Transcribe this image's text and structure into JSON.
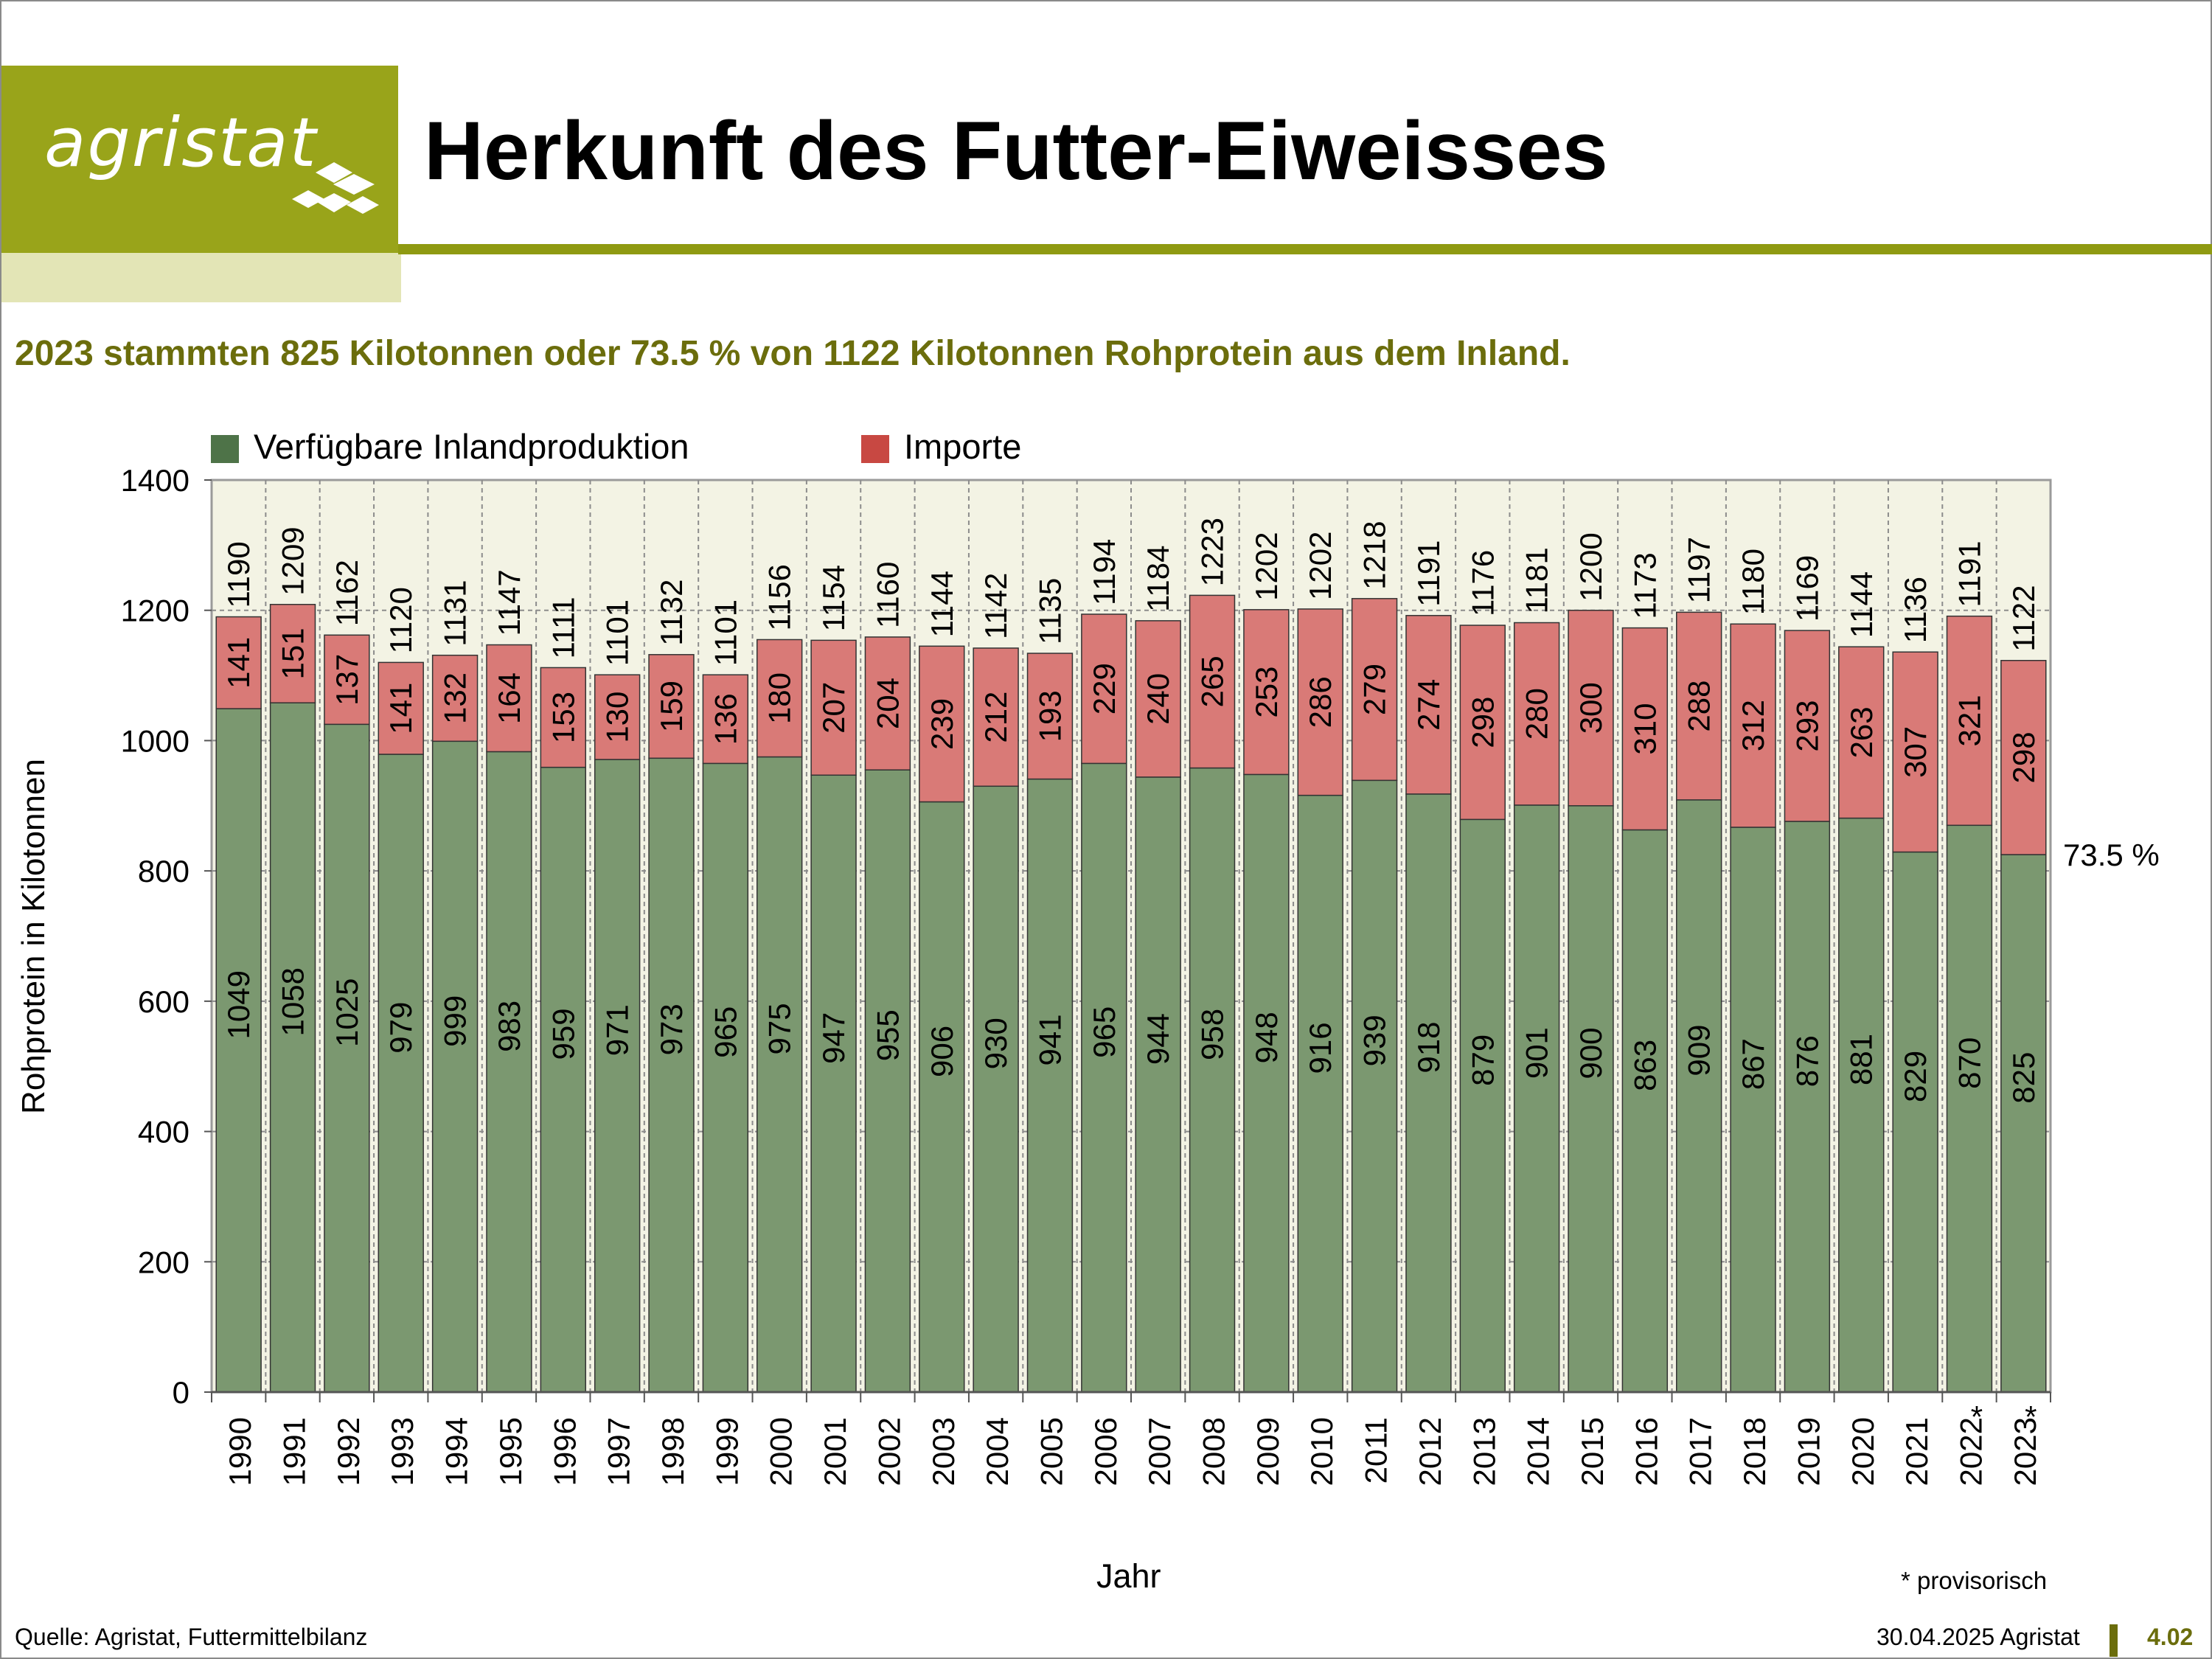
{
  "header": {
    "logo_text": "agristat",
    "title": "Herkunft des Futter-Eiweisses"
  },
  "subtitle": "2023 stammten 825 Kilotonnen oder 73.5 % von 1122 Kilotonnen Rohprotein aus dem Inland.",
  "colors": {
    "brand": "#99a41a",
    "brand_dark": "#6b6d0c",
    "inland": "#7b9870",
    "inland_legend": "#4e7348",
    "imports": "#d97a77",
    "imports_legend": "#c84842",
    "plot_bg": "#f3f3e4"
  },
  "chart_data": {
    "type": "bar",
    "stacked": true,
    "categories": [
      "1990",
      "1991",
      "1992",
      "1993",
      "1994",
      "1995",
      "1996",
      "1997",
      "1998",
      "1999",
      "2000",
      "2001",
      "2002",
      "2003",
      "2004",
      "2005",
      "2006",
      "2007",
      "2008",
      "2009",
      "2010",
      "2011",
      "2012",
      "2013",
      "2014",
      "2015",
      "2016",
      "2017",
      "2018",
      "2019",
      "2020",
      "2021",
      "2022 *",
      "2023 *"
    ],
    "series": [
      {
        "name": "Verfügbare Inlandproduktion",
        "values": [
          1049,
          1058,
          1025,
          979,
          999,
          983,
          959,
          971,
          973,
          965,
          975,
          947,
          955,
          906,
          930,
          941,
          965,
          944,
          958,
          948,
          916,
          939,
          918,
          879,
          901,
          900,
          863,
          909,
          867,
          876,
          881,
          829,
          870,
          825
        ]
      },
      {
        "name": "Importe",
        "values": [
          141,
          151,
          137,
          141,
          132,
          164,
          153,
          130,
          159,
          136,
          180,
          207,
          204,
          239,
          212,
          193,
          229,
          240,
          265,
          253,
          286,
          279,
          274,
          298,
          280,
          300,
          310,
          288,
          312,
          293,
          263,
          307,
          321,
          298
        ]
      }
    ],
    "totals": [
      1190,
      1209,
      1162,
      1120,
      1131,
      1147,
      1111,
      1101,
      1132,
      1101,
      1156,
      1154,
      1160,
      1144,
      1142,
      1135,
      1194,
      1184,
      1223,
      1202,
      1202,
      1218,
      1191,
      1176,
      1181,
      1200,
      1173,
      1197,
      1180,
      1169,
      1144,
      1136,
      1191,
      1122
    ],
    "ylabel": "Rohprotein in Kilotonnen",
    "xlabel": "Jahr",
    "ylim": [
      0,
      1400
    ],
    "yticks": [
      0,
      200,
      400,
      600,
      800,
      1000,
      1200,
      1400
    ],
    "annotation": "73.5 %",
    "grid": true,
    "legend": "top-left"
  },
  "footer": {
    "note": "* provisorisch",
    "source": "Quelle: Agristat, Futtermittelbilanz",
    "date": "30.04.2025 Agristat",
    "page": "4.02"
  }
}
